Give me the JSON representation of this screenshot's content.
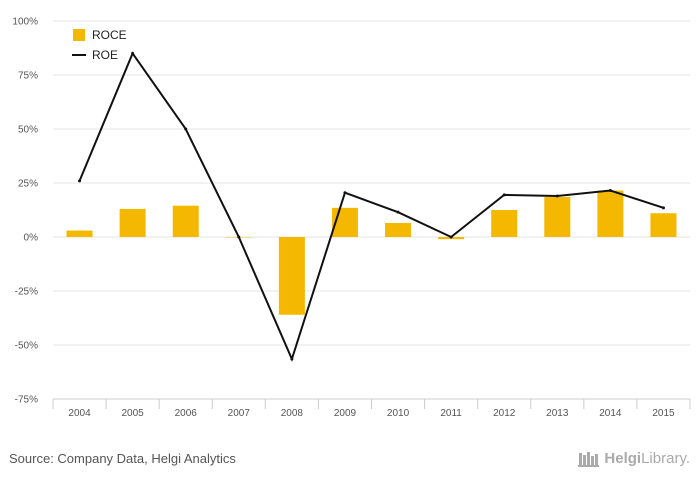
{
  "chart_data": {
    "type": "bar",
    "categories": [
      "2004",
      "2005",
      "2006",
      "2007",
      "2008",
      "2009",
      "2010",
      "2011",
      "2012",
      "2013",
      "2014",
      "2015"
    ],
    "series": [
      {
        "name": "ROCE",
        "type": "bar",
        "color": "#f5b800",
        "values": [
          3,
          13,
          14.5,
          0,
          -36,
          13.5,
          6.5,
          -1,
          12.5,
          18.5,
          21.5,
          11
        ]
      },
      {
        "name": "ROE",
        "type": "line",
        "color": "#111111",
        "values": [
          26,
          85,
          50,
          0,
          -56.5,
          20.5,
          11.5,
          0,
          19.5,
          19,
          21.5,
          13.5
        ]
      }
    ],
    "yticks": [
      "100%",
      "75%",
      "50%",
      "25%",
      "0%",
      "-25%",
      "-50%",
      "-75%"
    ],
    "ylim": [
      -75,
      100
    ],
    "grid": true,
    "legend_position": "top-left"
  },
  "footer": {
    "source": "Source: Company Data, Helgi Analytics",
    "brand_prefix": "Helgi",
    "brand_suffix": "Library."
  }
}
